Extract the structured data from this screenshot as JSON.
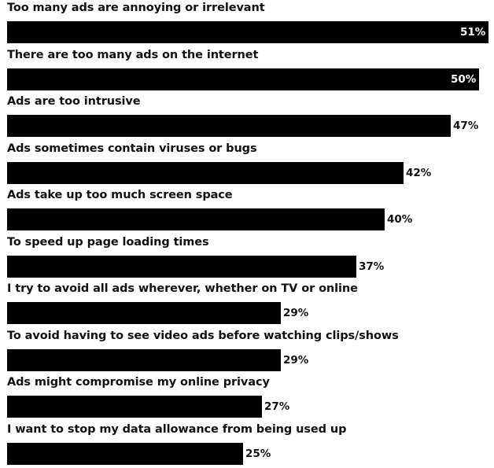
{
  "colors": {
    "bar": "#000000",
    "text": "#111111",
    "inside_label": "#ffffff",
    "background": "#ffffff"
  },
  "chart_data": {
    "type": "bar",
    "orientation": "horizontal",
    "unit": "%",
    "xlim": [
      0,
      51
    ],
    "grid": false,
    "legend": "none",
    "categories": [
      "Too many ads are annoying or irrelevant",
      "There are too many ads on the internet",
      "Ads are too intrusive",
      "Ads sometimes contain viruses or bugs",
      "Ads take up too much screen space",
      "To speed up page loading times",
      "I try to avoid all ads wherever, whether on TV or online",
      "To avoid having to see video ads before watching clips/shows",
      "Ads might compromise my online privacy",
      "I want to stop my data allowance from being used up"
    ],
    "values": [
      51,
      50,
      47,
      42,
      40,
      37,
      29,
      29,
      27,
      25
    ],
    "value_labels": [
      "51%",
      "50%",
      "47%",
      "42%",
      "40%",
      "37%",
      "29%",
      "29%",
      "27%",
      "25%"
    ],
    "label_inside": [
      true,
      true,
      false,
      false,
      false,
      false,
      false,
      false,
      false,
      false
    ]
  }
}
